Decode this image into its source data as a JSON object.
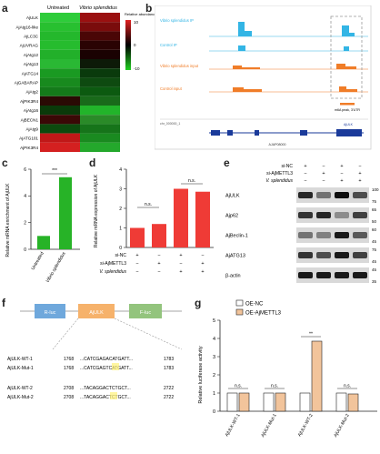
{
  "panels": {
    "a": {
      "letter": "a",
      "columns": [
        "Untreated",
        "Vibrio splendidus"
      ],
      "genes": [
        "AjULK",
        "AjAtg16-like",
        "AjLC3C",
        "AjUVRAG",
        "AjAtg12",
        "AjAtg13",
        "AjATG14",
        "AjGABARAP",
        "AjAtg2",
        "AjPIK3R4",
        "AjAtg16",
        "AjBECN1",
        "AjAtg9",
        "AjATG101",
        "AjPIK3R4"
      ],
      "legend_title": "Relative abundance",
      "legend_ticks": [
        "10",
        "0",
        "-10"
      ],
      "cell_colors": [
        [
          "#2ecc3a",
          "#9a1010"
        ],
        [
          "#28c030",
          "#7a0c0c"
        ],
        [
          "#24b82c",
          "#4a0606"
        ],
        [
          "#26bc2e",
          "#2a0303"
        ],
        [
          "#22b02a",
          "#1a0202"
        ],
        [
          "#2ab834",
          "#0d1a08"
        ],
        [
          "#1a9a22",
          "#0a3a0c"
        ],
        [
          "#188a1e",
          "#0e4a10"
        ],
        [
          "#147a1a",
          "#0c5a10"
        ],
        [
          "#2a0a04",
          "#196a1a"
        ],
        [
          "#0a3a0a",
          "#22b42a"
        ],
        [
          "#3a0806",
          "#2a8a28"
        ],
        [
          "#0c4a0e",
          "#16741a"
        ],
        [
          "#c01818",
          "#1a8a20"
        ],
        [
          "#d42020",
          "#24a82c"
        ]
      ]
    },
    "b": {
      "letter": "b",
      "tracks": [
        {
          "label": "Vibrio splendidus IP",
          "color": "#33b5e5"
        },
        {
          "label": "Control IP",
          "color": "#33b5e5"
        },
        {
          "label": "Vibrio splendidus input",
          "color": "#f07d28"
        },
        {
          "label": "Control input",
          "color": "#f07d28"
        }
      ],
      "peak_label": "m6A peak, 3'UTR",
      "ref_label": "AjULK",
      "gene_label": "AJAP08000",
      "transcript_label": "chr_000000_1"
    },
    "c": {
      "letter": "c",
      "ylabel": "Relative mRNA enrichment of AjULK",
      "categories": [
        "Untreated",
        "Vibrio splendidus"
      ],
      "yticks": [
        "0",
        "2",
        "4",
        "6"
      ],
      "sig": "***"
    },
    "d": {
      "letter": "d",
      "ylabel": "Relative mRNA expression of AjULK",
      "yticks": [
        "0",
        "1",
        "2",
        "3",
        "4"
      ],
      "sig_left": "n.s.",
      "sig_right": "n.s.",
      "row_labels": [
        "si-NC",
        "si-AjMETTL3",
        "V. splendidus"
      ],
      "row_values": [
        [
          "+",
          "−",
          "+",
          "−"
        ],
        [
          "−",
          "+",
          "−",
          "+"
        ],
        [
          "−",
          "−",
          "+",
          "+"
        ]
      ]
    },
    "e": {
      "letter": "e",
      "row_labels": [
        "si-NC",
        "si-AjMETTL3",
        "V. splendidus"
      ],
      "row_values": [
        [
          "+",
          "−",
          "+",
          "−"
        ],
        [
          "−",
          "+",
          "−",
          "+"
        ],
        [
          "−",
          "−",
          "+",
          "+"
        ]
      ],
      "proteins": [
        "AjULK",
        "Ajp62",
        "AjBeclin-1",
        "AjATG13",
        "β-actin"
      ],
      "markers": [
        [
          "100",
          "75"
        ],
        [
          "65",
          "50"
        ],
        [
          "60",
          "45"
        ],
        [
          "75",
          "45"
        ],
        [
          "45",
          "35"
        ]
      ]
    },
    "f": {
      "letter": "f",
      "boxes": [
        "R-luc",
        "AjULK",
        "F-luc"
      ],
      "seqs": [
        {
          "name": "AjULK-WT-1",
          "start": "1768",
          "seq": "...CATCGAGACATGATT...",
          "end": "1783"
        },
        {
          "name": "AjULK-Mut-1",
          "start": "1768",
          "seq": "...CATCGAGTCATGATT...",
          "end": "1783"
        },
        {
          "name": "AjULK-WT-2",
          "start": "2708",
          "seq": "...TACAGGACTCTGCT...",
          "end": "2722"
        },
        {
          "name": "AjULK-Mut-2",
          "start": "2708",
          "seq": "...TACAGGACTCTGCT...",
          "end": "2722"
        }
      ]
    },
    "g": {
      "letter": "g",
      "legend": [
        "OE-NC",
        "OE-AjMETTL3"
      ],
      "ylabel": "Relative luciferase activity",
      "yticks": [
        "0",
        "1",
        "2",
        "3",
        "4",
        "5"
      ],
      "categories": [
        "AjULK-WT-1",
        "AjULK-Mut-1",
        "AjULK-WT-2",
        "AjULK-Mut-2"
      ],
      "sig": [
        "n.s.",
        "n.s.",
        "**",
        "n.s."
      ]
    }
  },
  "chart_data": [
    {
      "type": "bar",
      "panel": "c",
      "categories": [
        "Untreated",
        "Vibrio splendidus"
      ],
      "values": [
        1.0,
        5.4
      ],
      "ylim": [
        0,
        6
      ],
      "color": "#27b327"
    },
    {
      "type": "bar",
      "panel": "d",
      "categories": [
        "1",
        "2",
        "3",
        "4"
      ],
      "values": [
        1.0,
        1.2,
        3.0,
        2.85
      ],
      "ylim": [
        0,
        4
      ],
      "color": "#ef3b36"
    },
    {
      "type": "bar",
      "panel": "g",
      "categories": [
        "AjULK-WT-1",
        "AjULK-Mut-1",
        "AjULK-WT-2",
        "AjULK-Mut-2"
      ],
      "series": [
        {
          "name": "OE-NC",
          "values": [
            1.0,
            1.0,
            1.0,
            1.0
          ],
          "color": "#ffffff"
        },
        {
          "name": "OE-AjMETTL3",
          "values": [
            1.0,
            1.0,
            3.85,
            0.95
          ],
          "color": "#f2c49b"
        }
      ],
      "ylim": [
        0,
        5
      ]
    }
  ]
}
